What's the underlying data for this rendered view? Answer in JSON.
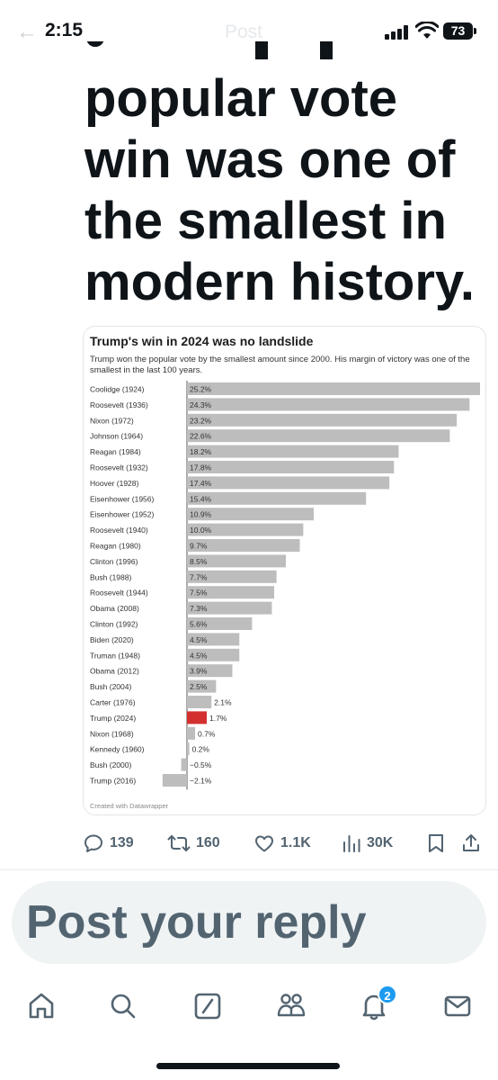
{
  "status_bar": {
    "time": "2:15",
    "battery": "73",
    "ghost_header": "Post"
  },
  "post": {
    "headline_lines": [
      "popular vote",
      "win was one of",
      "the smallest in",
      "modern history."
    ]
  },
  "chart_data": {
    "type": "bar",
    "orientation": "horizontal",
    "title": "Trump's win in 2024 was no landslide",
    "subtitle": "Trump won the popular vote by the smallest amount since 2000. His margin of victory was one of the smallest in the last 100 years.",
    "credit": "Created with Datawrapper",
    "categories": [
      "Coolidge (1924)",
      "Roosevelt (1936)",
      "Nixon (1972)",
      "Johnson (1964)",
      "Reagan (1984)",
      "Roosevelt (1932)",
      "Hoover (1928)",
      "Eisenhower (1956)",
      "Eisenhower (1952)",
      "Roosevelt (1940)",
      "Reagan (1980)",
      "Clinton (1996)",
      "Bush (1988)",
      "Roosevelt (1944)",
      "Obama (2008)",
      "Clinton (1992)",
      "Biden (2020)",
      "Truman (1948)",
      "Obama (2012)",
      "Bush (2004)",
      "Carter (1976)",
      "Trump (2024)",
      "Nixon (1968)",
      "Kennedy (1960)",
      "Bush (2000)",
      "Trump (2016)"
    ],
    "values": [
      25.2,
      24.3,
      23.2,
      22.6,
      18.2,
      17.8,
      17.4,
      15.4,
      10.9,
      10.0,
      9.7,
      8.5,
      7.7,
      7.5,
      7.3,
      5.6,
      4.5,
      4.5,
      3.9,
      2.5,
      2.1,
      1.7,
      0.7,
      0.2,
      -0.5,
      -2.1
    ],
    "value_labels": [
      "25.2%",
      "24.3%",
      "23.2%",
      "22.6%",
      "18.2%",
      "17.8%",
      "17.4%",
      "15.4%",
      "10.9%",
      "10.0%",
      "9.7%",
      "8.5%",
      "7.7%",
      "7.5%",
      "7.3%",
      "5.6%",
      "4.5%",
      "4.5%",
      "3.9%",
      "2.5%",
      "2.1%",
      "1.7%",
      "0.7%",
      "0.2%",
      "−0.5%",
      "−2.1%"
    ],
    "highlight_index": 21,
    "colors": {
      "default": "#bdbdbd",
      "highlight": "#d32f2f"
    },
    "xlim": [
      -2.1,
      25.2
    ]
  },
  "actions": {
    "replies": "139",
    "reposts": "160",
    "likes": "1.1K",
    "views": "30K"
  },
  "reply": {
    "placeholder": "Post your reply"
  },
  "tabbar": {
    "notifications_badge": "2",
    "tabs": [
      "home-icon",
      "search-icon",
      "grok-icon",
      "communities-icon",
      "notifications-icon",
      "messages-icon"
    ]
  },
  "colors": {
    "accent": "#1d9bf0",
    "muted": "#536471",
    "text": "#0f1419"
  }
}
